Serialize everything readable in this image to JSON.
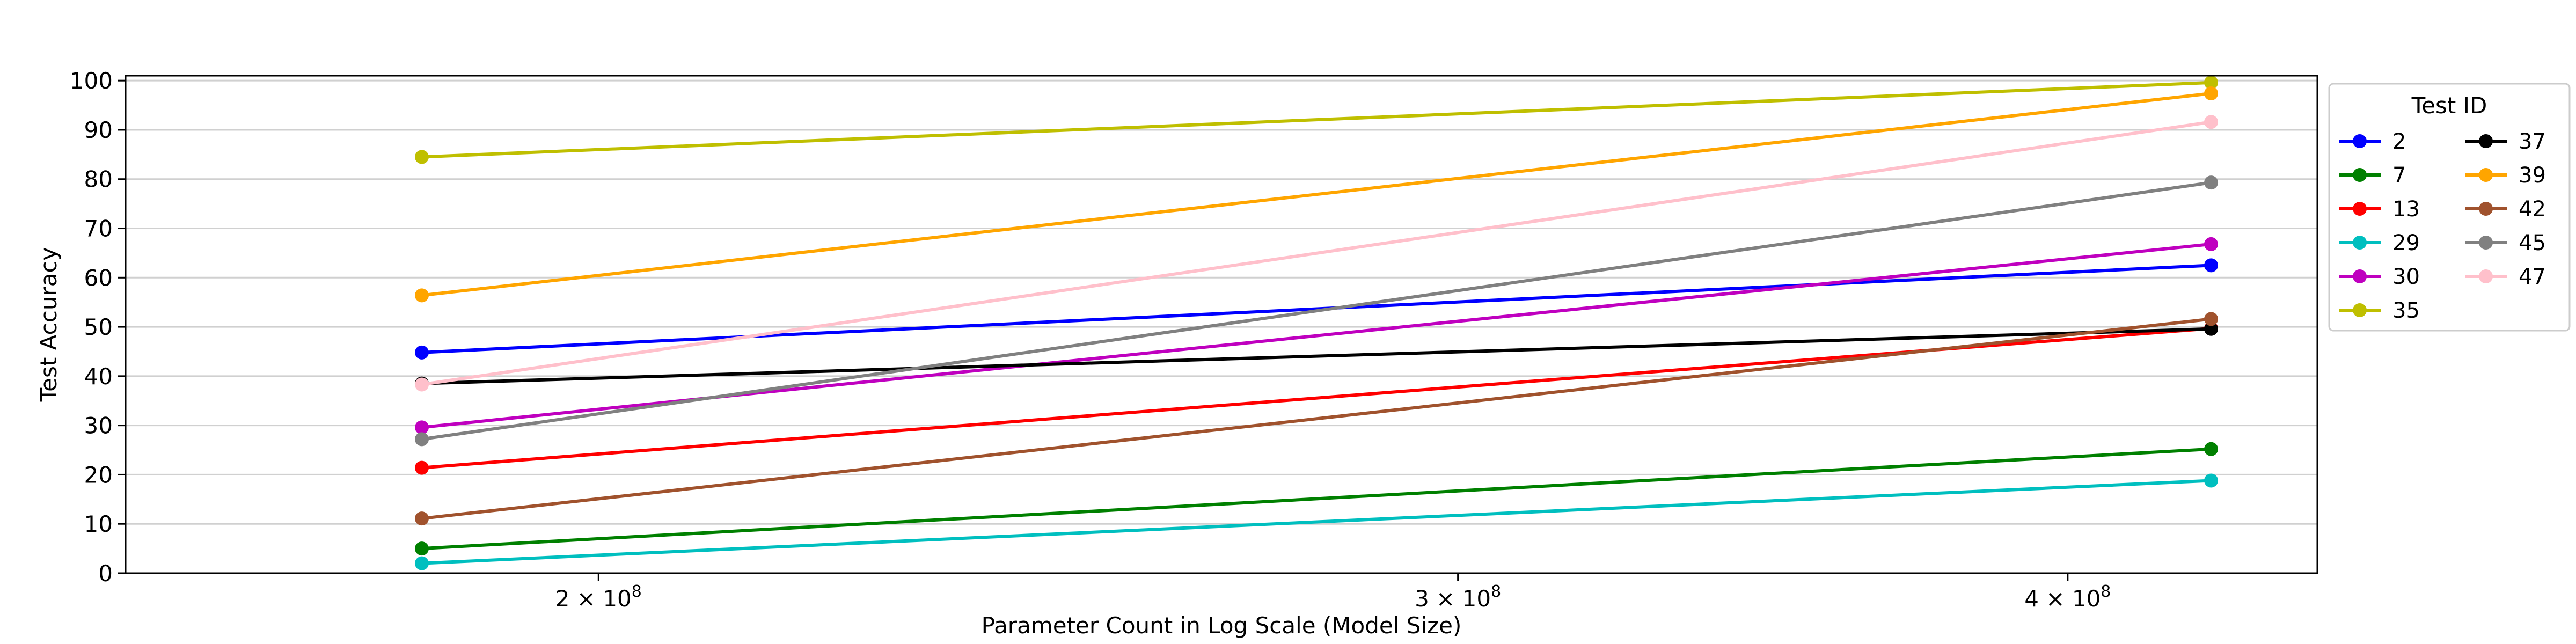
{
  "chart_data": {
    "type": "line",
    "xlabel": "Parameter Count in Log Scale (Model Size)",
    "ylabel": "Test Accuracy",
    "x_scale": "log",
    "x_ticks": [
      {
        "value": 200000000,
        "mantissa": "2",
        "base": "10",
        "exponent": "8"
      },
      {
        "value": 300000000,
        "mantissa": "3",
        "base": "10",
        "exponent": "8"
      },
      {
        "value": 400000000,
        "mantissa": "4",
        "base": "10",
        "exponent": "8"
      }
    ],
    "xlim": [
      160000000,
      450000000
    ],
    "ylim": [
      0,
      101
    ],
    "y_ticks": [
      0,
      10,
      20,
      30,
      40,
      50,
      60,
      70,
      80,
      90,
      100
    ],
    "grid": "horizontal",
    "x": [
      184000000,
      428000000
    ],
    "legend": {
      "title": "Test ID",
      "placement": "outside-right",
      "columns": 2
    },
    "series": [
      {
        "name": "2",
        "color": "#0000ff",
        "values": [
          44.8,
          62.5
        ]
      },
      {
        "name": "7",
        "color": "#008000",
        "values": [
          5.0,
          25.2
        ]
      },
      {
        "name": "13",
        "color": "#ff0000",
        "values": [
          21.4,
          49.7
        ]
      },
      {
        "name": "29",
        "color": "#00bfbf",
        "values": [
          2.0,
          18.8
        ]
      },
      {
        "name": "30",
        "color": "#bf00bf",
        "values": [
          29.6,
          66.8
        ]
      },
      {
        "name": "35",
        "color": "#bfbf00",
        "values": [
          84.5,
          99.6
        ]
      },
      {
        "name": "37",
        "color": "#000000",
        "values": [
          38.5,
          49.6
        ]
      },
      {
        "name": "39",
        "color": "#ffa500",
        "values": [
          56.4,
          97.4
        ]
      },
      {
        "name": "42",
        "color": "#a0522d",
        "values": [
          11.1,
          51.6
        ]
      },
      {
        "name": "45",
        "color": "#808080",
        "values": [
          27.2,
          79.3
        ]
      },
      {
        "name": "47",
        "color": "#ffc0cb",
        "values": [
          38.3,
          91.6
        ]
      }
    ]
  }
}
